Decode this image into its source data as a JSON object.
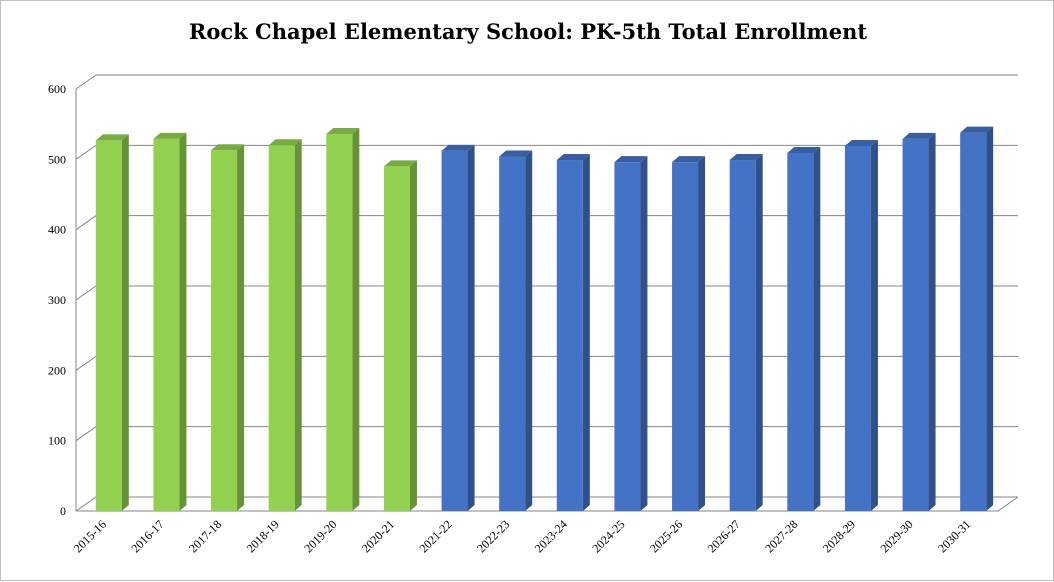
{
  "chart_data": {
    "type": "bar",
    "title": "Rock Chapel Elementary School: PK-5th Total Enrollment",
    "xlabel": "",
    "ylabel": "",
    "ylim": [
      0,
      600
    ],
    "yticks": [
      0,
      100,
      200,
      300,
      400,
      500,
      600
    ],
    "categories": [
      "2015-16",
      "2016-17",
      "2017-18",
      "2018-19",
      "2019-20",
      "2020-21",
      "2021-22",
      "2022-23",
      "2023-24",
      "2024-25",
      "2025-26",
      "2026-27",
      "2027-28",
      "2028-29",
      "2029-30",
      "2030-31"
    ],
    "values": [
      527,
      529,
      513,
      520,
      536,
      490,
      512,
      504,
      499,
      496,
      496,
      499,
      509,
      519,
      529,
      538
    ],
    "bar_colors": [
      "#92d050",
      "#92d050",
      "#92d050",
      "#92d050",
      "#92d050",
      "#92d050",
      "#4472c4",
      "#4472c4",
      "#4472c4",
      "#4472c4",
      "#4472c4",
      "#4472c4",
      "#4472c4",
      "#4472c4",
      "#4472c4",
      "#4472c4"
    ],
    "grid": true,
    "legend": "none"
  }
}
